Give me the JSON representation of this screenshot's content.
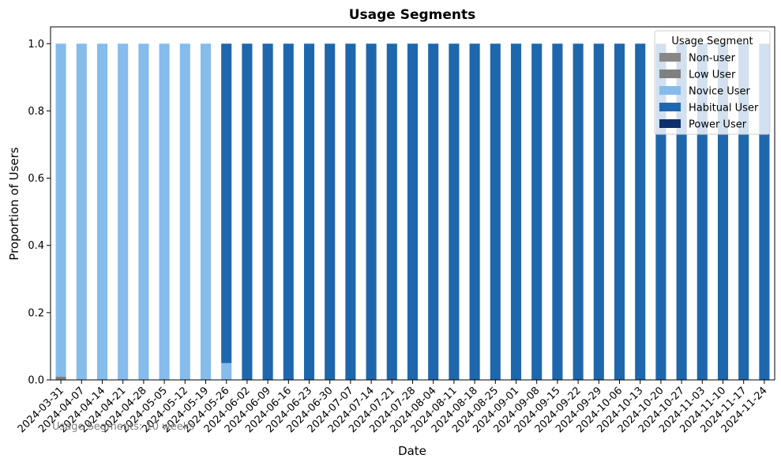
{
  "chart_data": {
    "type": "bar",
    "stacked": true,
    "title": "Usage Segments",
    "xlabel": "Date",
    "ylabel": "Proportion of Users",
    "ylim": [
      0,
      1.05
    ],
    "yticks": [
      "0.0",
      "0.2",
      "0.4",
      "0.6",
      "0.8",
      "1.0"
    ],
    "grid": false,
    "legend_title": "Usage Segment",
    "legend_position": "top-right",
    "footnote": "Usage Segments: 10 weeks",
    "categories": [
      "2024-03-31",
      "2024-04-07",
      "2024-04-14",
      "2024-04-21",
      "2024-04-28",
      "2024-05-05",
      "2024-05-12",
      "2024-05-19",
      "2024-05-26",
      "2024-06-02",
      "2024-06-09",
      "2024-06-16",
      "2024-06-23",
      "2024-06-30",
      "2024-07-07",
      "2024-07-14",
      "2024-07-21",
      "2024-07-28",
      "2024-08-04",
      "2024-08-11",
      "2024-08-18",
      "2024-08-25",
      "2024-09-01",
      "2024-09-08",
      "2024-09-15",
      "2024-09-22",
      "2024-09-29",
      "2024-10-06",
      "2024-10-13",
      "2024-10-20",
      "2024-10-27",
      "2024-11-03",
      "2024-11-10",
      "2024-11-17",
      "2024-11-24"
    ],
    "series": [
      {
        "name": "Non-user",
        "color": "#888888",
        "values": [
          0,
          0,
          0,
          0,
          0,
          0,
          0,
          0,
          0,
          0,
          0,
          0,
          0,
          0,
          0,
          0,
          0,
          0,
          0,
          0,
          0,
          0,
          0,
          0,
          0,
          0,
          0,
          0,
          0,
          0,
          0,
          0,
          0,
          0,
          0
        ]
      },
      {
        "name": "Low User",
        "color": "#808080",
        "values": [
          0.01,
          0,
          0,
          0,
          0,
          0,
          0,
          0,
          0,
          0,
          0,
          0,
          0,
          0,
          0,
          0,
          0,
          0,
          0,
          0,
          0,
          0,
          0,
          0,
          0,
          0,
          0,
          0,
          0,
          0,
          0,
          0,
          0,
          0,
          0
        ]
      },
      {
        "name": "Novice User",
        "color": "#85bcec",
        "values": [
          0.99,
          1,
          1,
          1,
          1,
          1,
          1,
          1,
          0.05,
          0,
          0,
          0,
          0,
          0,
          0,
          0,
          0,
          0,
          0,
          0,
          0,
          0,
          0,
          0,
          0,
          0,
          0,
          0,
          0,
          0,
          0,
          0,
          0,
          0,
          0
        ]
      },
      {
        "name": "Habitual User",
        "color": "#1f67ad",
        "values": [
          0,
          0,
          0,
          0,
          0,
          0,
          0,
          0,
          0.95,
          1,
          1,
          1,
          1,
          1,
          1,
          1,
          1,
          1,
          1,
          1,
          1,
          1,
          1,
          1,
          1,
          1,
          1,
          1,
          1,
          1,
          1,
          1,
          1,
          1,
          1
        ]
      },
      {
        "name": "Power User",
        "color": "#0d2f6b",
        "values": [
          0,
          0,
          0,
          0,
          0,
          0,
          0,
          0,
          0,
          0,
          0,
          0,
          0,
          0,
          0,
          0,
          0,
          0,
          0,
          0,
          0,
          0,
          0,
          0,
          0,
          0,
          0,
          0,
          0,
          0,
          0,
          0,
          0,
          0,
          0
        ]
      }
    ]
  }
}
